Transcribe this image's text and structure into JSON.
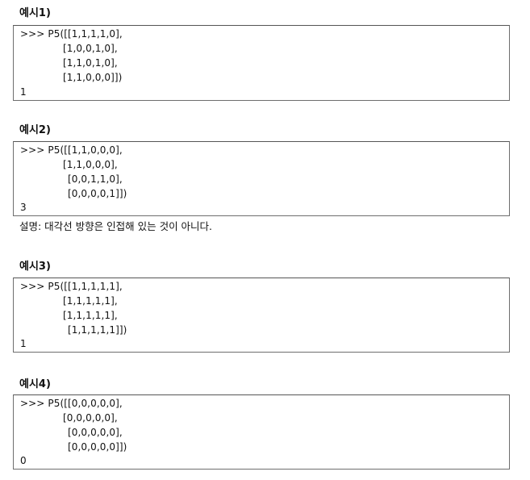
{
  "examples": [
    {
      "heading": "예시1)",
      "lines": [
        ">>> P5([[1,1,1,1,0],",
        "[1,0,0,1,0],",
        "[1,1,0,1,0],",
        "[1,1,0,0,0]])"
      ],
      "result": "1"
    },
    {
      "heading": "예시2)",
      "lines": [
        ">>> P5([[1,1,0,0,0],",
        "[1,1,0,0,0],",
        "[0,0,1,1,0],",
        "[0,0,0,0,1]])"
      ],
      "result": "3",
      "note": "설명: 대각선 방향은 인접해 있는 것이 아니다."
    },
    {
      "heading": "예시3)",
      "lines": [
        ">>> P5([[1,1,1,1,1],",
        "[1,1,1,1,1],",
        "[1,1,1,1,1],",
        "[1,1,1,1,1]])"
      ],
      "result": "1"
    },
    {
      "heading": "예시4)",
      "lines": [
        ">>> P5([[0,0,0,0,0],",
        "[0,0,0,0,0],",
        "[0,0,0,0,0],",
        "[0,0,0,0,0]])"
      ],
      "result": "0"
    }
  ]
}
